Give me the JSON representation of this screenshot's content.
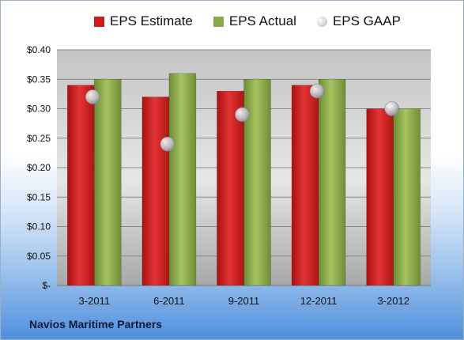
{
  "chart_data": {
    "type": "bar",
    "categories": [
      "3-2011",
      "6-2011",
      "9-2011",
      "12-2011",
      "3-2012"
    ],
    "series": [
      {
        "name": "EPS Estimate",
        "kind": "bar",
        "color": "#cc1b1b",
        "values": [
          0.34,
          0.32,
          0.33,
          0.34,
          0.3
        ]
      },
      {
        "name": "EPS Actual",
        "kind": "bar",
        "color": "#8aaa4a",
        "values": [
          0.35,
          0.36,
          0.35,
          0.35,
          0.3
        ]
      },
      {
        "name": "EPS GAAP",
        "kind": "scatter",
        "color": "#b8bcc4",
        "values": [
          0.32,
          0.24,
          0.29,
          0.33,
          0.3
        ]
      }
    ],
    "yticks": [
      "$-",
      "$0.05",
      "$0.10",
      "$0.15",
      "$0.20",
      "$0.25",
      "$0.30",
      "$0.35",
      "$0.40"
    ],
    "ylim": [
      0,
      0.4
    ],
    "grid": true,
    "legend_position": "top"
  },
  "footer": {
    "company": "Navios Maritime Partners"
  }
}
